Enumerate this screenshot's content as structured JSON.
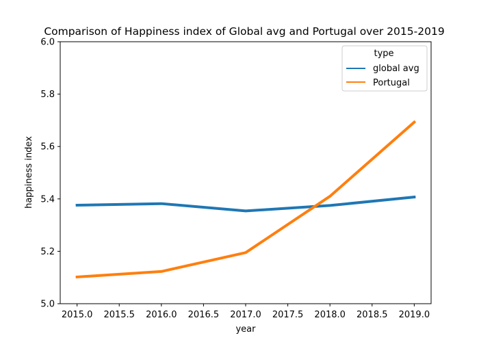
{
  "chart_data": {
    "type": "line",
    "title": "Comparison of Happiness index of Global avg and Portugal over 2015-2019",
    "xlabel": "year",
    "ylabel": "happiness index",
    "x": [
      2015,
      2016,
      2017,
      2018,
      2019
    ],
    "xlim": [
      2014.8,
      2019.2
    ],
    "ylim": [
      5.0,
      6.0
    ],
    "xticks": [
      "2015.0",
      "2015.5",
      "2016.0",
      "2016.5",
      "2017.0",
      "2017.5",
      "2018.0",
      "2018.5",
      "2019.0"
    ],
    "xtick_values": [
      2015.0,
      2015.5,
      2016.0,
      2016.5,
      2017.0,
      2017.5,
      2018.0,
      2018.5,
      2019.0
    ],
    "yticks": [
      "5.0",
      "5.2",
      "5.4",
      "5.6",
      "5.8",
      "6.0"
    ],
    "ytick_values": [
      5.0,
      5.2,
      5.4,
      5.6,
      5.8,
      6.0
    ],
    "grid": false,
    "legend": {
      "title": "type",
      "placement": "top-right"
    },
    "series": [
      {
        "name": "global avg",
        "color": "#1f77b4",
        "values": [
          5.376,
          5.382,
          5.354,
          5.375,
          5.407
        ]
      },
      {
        "name": "Portugal",
        "color": "#ff7f0e",
        "values": [
          5.102,
          5.123,
          5.195,
          5.41,
          5.693
        ]
      }
    ]
  }
}
